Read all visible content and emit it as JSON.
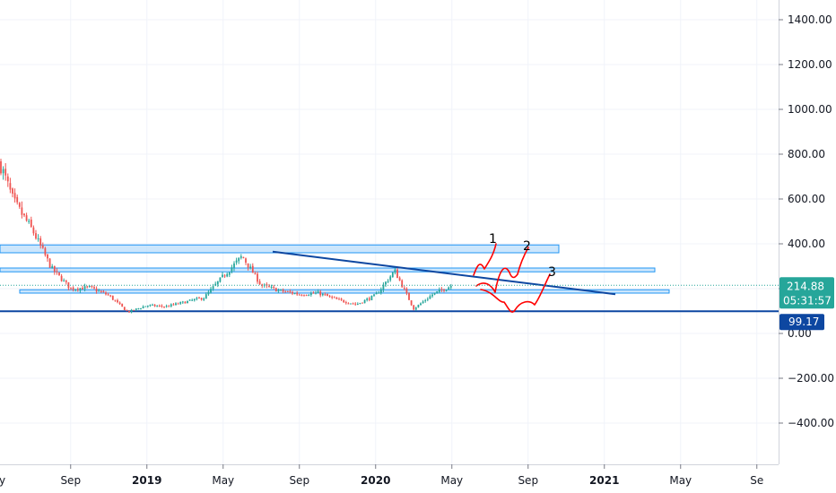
{
  "chart_data": {
    "type": "candlestick",
    "title": "",
    "x_ticks": [
      "May",
      "Sep",
      "2019",
      "May",
      "Sep",
      "2020",
      "May",
      "Sep",
      "2021",
      "May",
      "Se"
    ],
    "bold_ticks": [
      "2019",
      "2020",
      "2021"
    ],
    "y_ticks": [
      "1400.00",
      "1200.00",
      "1000.00",
      "800.00",
      "600.00",
      "400.00",
      "200.00",
      "0.00",
      "−200.00",
      "−400.00"
    ],
    "y_tick_values": [
      1400,
      1200,
      1000,
      800,
      600,
      400,
      200,
      0,
      -200,
      -400
    ],
    "ylim": [
      -540,
      1480
    ],
    "grid": true,
    "current_price": {
      "label": "214.88",
      "value": 214.88,
      "countdown": "05:31:57",
      "color": "#26a69a"
    },
    "horizontal_line": {
      "label": "99.17",
      "value": 99.17,
      "color": "#0d47a1"
    },
    "colors": {
      "up": "#26a69a",
      "down": "#ef5350",
      "zone_fill": "#bbdefb",
      "zone_stroke": "#2196f3",
      "trendline": "#0d47a1",
      "drawing": "#ff0000"
    },
    "zones": [
      {
        "low": 360,
        "high": 395
      },
      {
        "low": 275,
        "high": 292
      },
      {
        "low": 180,
        "high": 195
      }
    ],
    "trendline": {
      "from_value": 365,
      "to_value": 195
    },
    "annotations": [
      "1",
      "2",
      "3"
    ],
    "price_path": [
      {
        "x": "2018-04",
        "price": 560
      },
      {
        "x": "2018-05",
        "price": 830
      },
      {
        "x": "2018-06",
        "price": 590
      },
      {
        "x": "2018-07",
        "price": 460
      },
      {
        "x": "2018-08",
        "price": 290
      },
      {
        "x": "2018-09",
        "price": 200
      },
      {
        "x": "2018-10",
        "price": 205
      },
      {
        "x": "2018-11",
        "price": 170
      },
      {
        "x": "2018-12",
        "price": 95
      },
      {
        "x": "2019-01",
        "price": 125
      },
      {
        "x": "2019-02",
        "price": 120
      },
      {
        "x": "2019-03",
        "price": 140
      },
      {
        "x": "2019-04",
        "price": 160
      },
      {
        "x": "2019-05",
        "price": 255
      },
      {
        "x": "2019-06",
        "price": 345
      },
      {
        "x": "2019-07",
        "price": 215
      },
      {
        "x": "2019-08",
        "price": 190
      },
      {
        "x": "2019-09",
        "price": 175
      },
      {
        "x": "2019-10",
        "price": 180
      },
      {
        "x": "2019-11",
        "price": 150
      },
      {
        "x": "2019-12",
        "price": 130
      },
      {
        "x": "2020-01",
        "price": 170
      },
      {
        "x": "2020-02",
        "price": 280
      },
      {
        "x": "2020-03",
        "price": 110
      },
      {
        "x": "2020-04",
        "price": 175
      },
      {
        "x": "2020-05",
        "price": 214.88
      }
    ]
  }
}
